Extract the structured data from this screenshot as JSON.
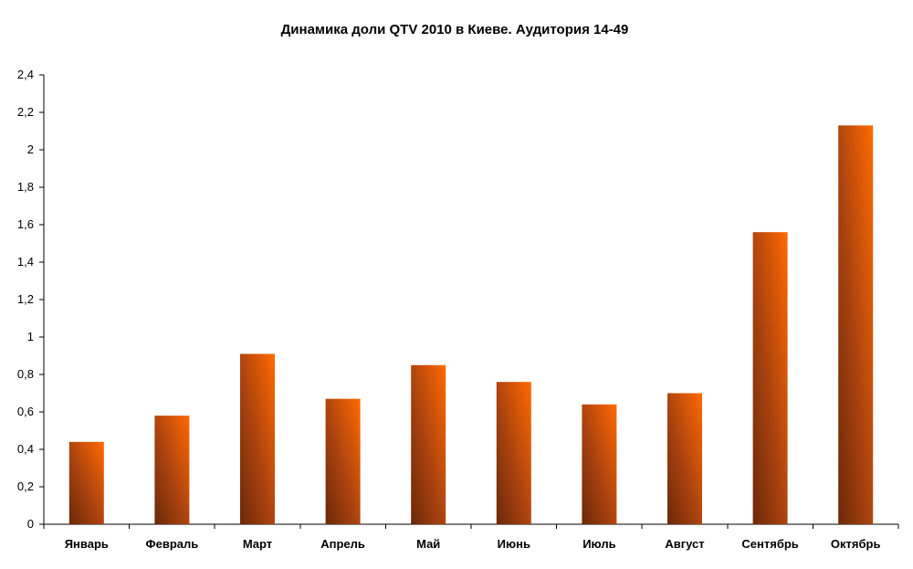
{
  "chart_data": {
    "type": "bar",
    "title": "Динамика доли QTV 2010 в Киеве. Аудитория 14-49",
    "xlabel": "",
    "ylabel": "",
    "categories": [
      "Январь",
      "Февраль",
      "Март",
      "Апрель",
      "Май",
      "Июнь",
      "Июль",
      "Август",
      "Сентябрь",
      "Октябрь"
    ],
    "values": [
      0.44,
      0.58,
      0.91,
      0.67,
      0.85,
      0.76,
      0.64,
      0.7,
      1.56,
      2.13
    ],
    "ylim": [
      0,
      2.4
    ],
    "y_ticks": [
      "0",
      "0,2",
      "0,4",
      "0,6",
      "0,8",
      "1",
      "1,2",
      "1,4",
      "1,6",
      "1,8",
      "2",
      "2,2",
      "2,4"
    ],
    "grid": false,
    "legend": "none",
    "colors": {
      "bar_light": "#ff6a00",
      "bar_mid": "#c84f12",
      "bar_dark": "#7a2e0a"
    }
  }
}
